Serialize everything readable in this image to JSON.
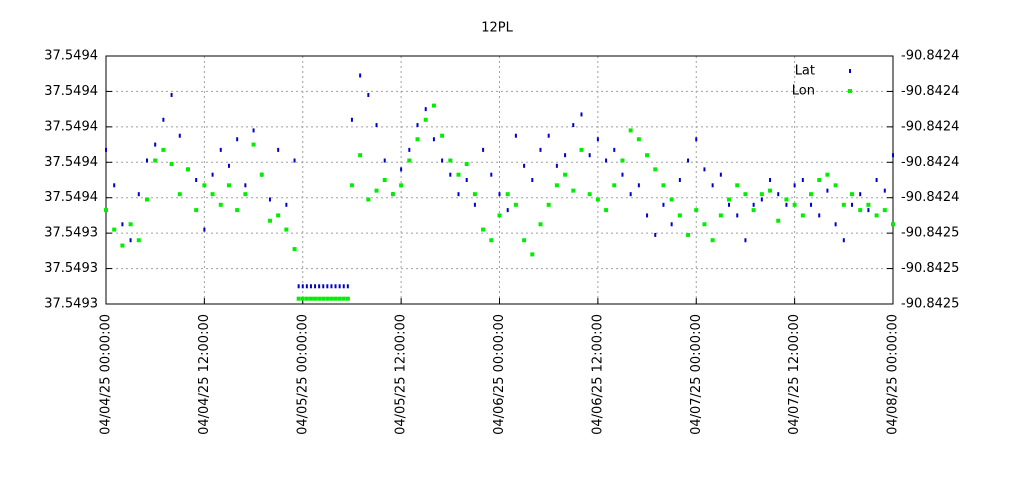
{
  "chart_data": {
    "type": "scatter",
    "title": "12PL",
    "x": [
      0,
      1,
      2,
      3,
      4,
      5,
      6,
      7,
      8,
      9,
      10,
      11,
      12,
      13,
      14,
      15,
      16,
      17,
      18,
      19,
      20,
      21,
      22,
      23,
      23.5,
      24,
      24.5,
      25,
      25.5,
      26,
      26.5,
      27,
      27.5,
      28,
      28.5,
      29,
      29.5,
      30,
      31,
      32,
      33,
      34,
      35,
      36,
      37,
      38,
      39,
      40,
      41,
      42,
      43,
      44,
      45,
      46,
      47,
      48,
      49,
      50,
      51,
      52,
      53,
      54,
      55,
      56,
      57,
      58,
      59,
      60,
      61,
      62,
      63,
      64,
      65,
      66,
      67,
      68,
      69,
      70,
      71,
      72,
      73,
      74,
      75,
      76,
      77,
      78,
      79,
      80,
      81,
      82,
      83,
      84,
      85,
      86,
      87,
      88,
      89,
      90,
      91,
      92,
      93,
      94,
      95,
      96
    ],
    "xlim": [
      0,
      96
    ],
    "xticks": [
      {
        "value": 0,
        "label": "04/04/25 00:00:00"
      },
      {
        "value": 12,
        "label": "04/04/25 12:00:00"
      },
      {
        "value": 24,
        "label": "04/05/25 00:00:00"
      },
      {
        "value": 36,
        "label": "04/05/25 12:00:00"
      },
      {
        "value": 48,
        "label": "04/06/25 00:00:00"
      },
      {
        "value": 60,
        "label": "04/06/25 12:00:00"
      },
      {
        "value": 72,
        "label": "04/07/25 00:00:00"
      },
      {
        "value": 84,
        "label": "04/07/25 12:00:00"
      },
      {
        "value": 96,
        "label": "04/08/25 00:00:00"
      }
    ],
    "ylim": [
      37.5493,
      37.54944
    ],
    "yticks": [
      {
        "value": 37.5493,
        "label": "37.5493"
      },
      {
        "value": 37.54932,
        "label": "37.5493"
      },
      {
        "value": 37.54934,
        "label": "37.5493"
      },
      {
        "value": 37.54936,
        "label": "37.5494"
      },
      {
        "value": 37.54938,
        "label": "37.5494"
      },
      {
        "value": 37.5494,
        "label": "37.5494"
      },
      {
        "value": 37.54942,
        "label": "37.5494"
      },
      {
        "value": 37.54944,
        "label": "37.5494"
      }
    ],
    "y2lim": [
      -90.8425,
      -90.84236
    ],
    "y2ticks": [
      {
        "value": -90.8425,
        "label": "-90.8425"
      },
      {
        "value": -90.84248,
        "label": "-90.8425"
      },
      {
        "value": -90.84246,
        "label": "-90.8425"
      },
      {
        "value": -90.84244,
        "label": "-90.8424"
      },
      {
        "value": -90.84242,
        "label": "-90.8424"
      },
      {
        "value": -90.8424,
        "label": "-90.8424"
      },
      {
        "value": -90.84238,
        "label": "-90.8424"
      },
      {
        "value": -90.84236,
        "label": "-90.8424"
      }
    ],
    "grid": true,
    "legend": "top-right",
    "series": [
      {
        "name": "Lat",
        "color": "#0000cc",
        "values": [
          37.549387,
          37.549367,
          37.549345,
          37.549336,
          37.549362,
          37.549381,
          37.54939,
          37.549404,
          37.549418,
          37.549395,
          37.549376,
          37.54937,
          37.549342,
          37.549373,
          37.549387,
          37.549378,
          37.549393,
          37.549367,
          37.549398,
          37.549373,
          37.549359,
          37.549387,
          37.549356,
          37.549381,
          37.54931,
          37.54931,
          37.54931,
          37.54931,
          37.54931,
          37.54931,
          37.54931,
          37.54931,
          37.54931,
          37.54931,
          37.54931,
          37.54931,
          37.54931,
          37.549404,
          37.549429,
          37.549418,
          37.549401,
          37.549381,
          37.549362,
          37.549376,
          37.549387,
          37.549401,
          37.54941,
          37.549393,
          37.549381,
          37.549373,
          37.549362,
          37.54937,
          37.549356,
          37.549387,
          37.549373,
          37.549362,
          37.549353,
          37.549395,
          37.549378,
          37.54937,
          37.549387,
          37.549395,
          37.549378,
          37.549384,
          37.549401,
          37.549407,
          37.549384,
          37.549393,
          37.549381,
          37.549387,
          37.549373,
          37.549362,
          37.549367,
          37.54935,
          37.549339,
          37.549356,
          37.549345,
          37.54937,
          37.549381,
          37.549393,
          37.549376,
          37.549367,
          37.549373,
          37.549356,
          37.54935,
          37.549336,
          37.549356,
          37.549359,
          37.54937,
          37.549362,
          37.549356,
          37.549367,
          37.54937,
          37.549356,
          37.54935,
          37.549364,
          37.549345,
          37.549336,
          37.549356,
          37.549362,
          37.549353,
          37.54937,
          37.549364,
          37.549384
        ]
      },
      {
        "name": "Lon",
        "color": "#00ee00",
        "axis": "y2",
        "values": [
          -90.842447,
          -90.842458,
          -90.842467,
          -90.842455,
          -90.842464,
          -90.842441,
          -90.842419,
          -90.842413,
          -90.842421,
          -90.842438,
          -90.842424,
          -90.842447,
          -90.842433,
          -90.842438,
          -90.842444,
          -90.842433,
          -90.842447,
          -90.842438,
          -90.84241,
          -90.842427,
          -90.842453,
          -90.84245,
          -90.842458,
          -90.842469,
          -90.842497,
          -90.842497,
          -90.842497,
          -90.842497,
          -90.842497,
          -90.842497,
          -90.842497,
          -90.842497,
          -90.842497,
          -90.842497,
          -90.842497,
          -90.842497,
          -90.842497,
          -90.842433,
          -90.842416,
          -90.842441,
          -90.842436,
          -90.84243,
          -90.842438,
          -90.842433,
          -90.842419,
          -90.842407,
          -90.842396,
          -90.842388,
          -90.842405,
          -90.842419,
          -90.842427,
          -90.842421,
          -90.842438,
          -90.842458,
          -90.842464,
          -90.84245,
          -90.842438,
          -90.842444,
          -90.842464,
          -90.842472,
          -90.842455,
          -90.842444,
          -90.842433,
          -90.842427,
          -90.842436,
          -90.842413,
          -90.842438,
          -90.842441,
          -90.842447,
          -90.842433,
          -90.842419,
          -90.842402,
          -90.842407,
          -90.842416,
          -90.842424,
          -90.842433,
          -90.842441,
          -90.84245,
          -90.842461,
          -90.842447,
          -90.842455,
          -90.842464,
          -90.84245,
          -90.842441,
          -90.842433,
          -90.842438,
          -90.842447,
          -90.842438,
          -90.842436,
          -90.842453,
          -90.842441,
          -90.842444,
          -90.84245,
          -90.842438,
          -90.84243,
          -90.842427,
          -90.842433,
          -90.842444,
          -90.842438,
          -90.842447,
          -90.842444,
          -90.84245,
          -90.842447,
          -90.842455
        ]
      }
    ]
  }
}
